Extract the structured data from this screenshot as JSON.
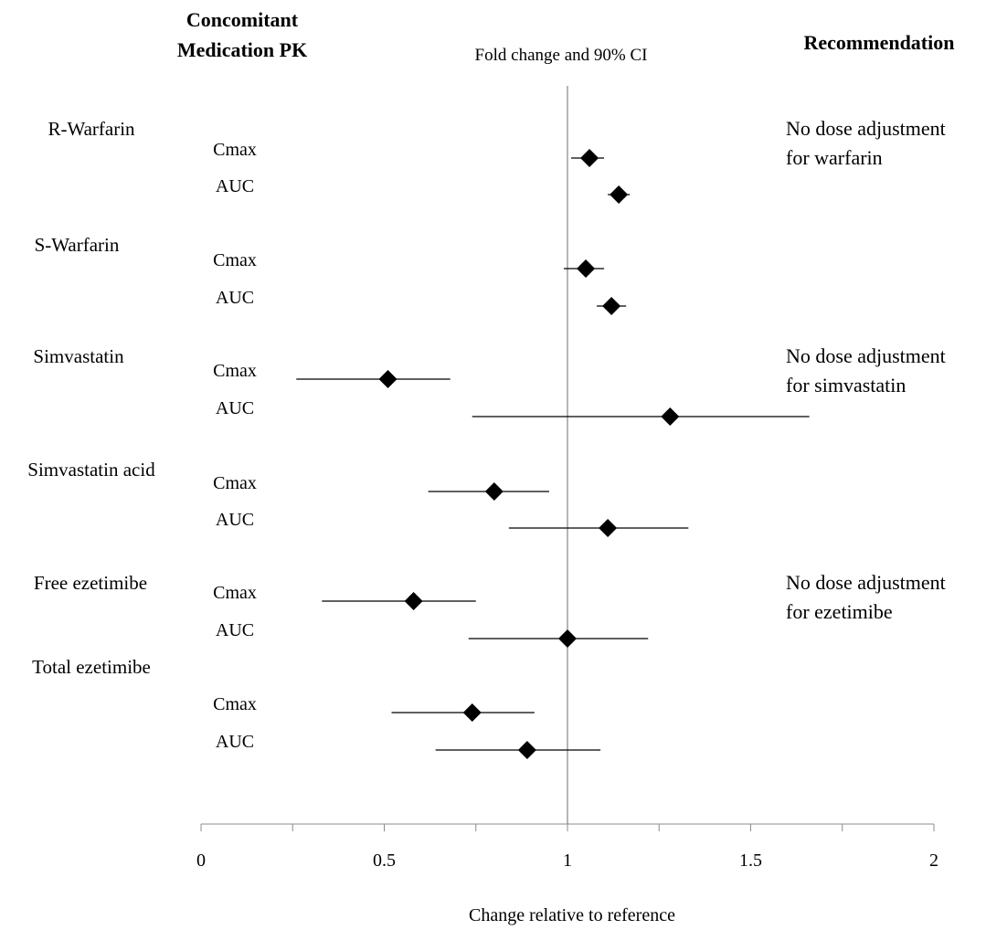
{
  "headers": {
    "left_line1": "Concomitant",
    "left_line2": "Medication PK",
    "center": "Fold change and 90% CI",
    "right": "Recommendation"
  },
  "chart_data": {
    "type": "forest",
    "title": "Fold change and 90% CI",
    "xlabel": "Change relative to reference",
    "xlim": [
      0,
      2
    ],
    "xticks": [
      "0",
      "0.5",
      "1",
      "1.5",
      "2"
    ],
    "reference_line": 1,
    "groups": [
      {
        "drug": "R-Warfarin",
        "rows": [
          {
            "metric": "Cmax",
            "estimate": 1.06,
            "ci_low": 1.01,
            "ci_high": 1.1
          },
          {
            "metric": "AUC",
            "estimate": 1.14,
            "ci_low": 1.11,
            "ci_high": 1.17
          }
        ]
      },
      {
        "drug": "S-Warfarin",
        "rows": [
          {
            "metric": "Cmax",
            "estimate": 1.05,
            "ci_low": 0.99,
            "ci_high": 1.1
          },
          {
            "metric": "AUC",
            "estimate": 1.12,
            "ci_low": 1.08,
            "ci_high": 1.16
          }
        ]
      },
      {
        "drug": "Simvastatin",
        "rows": [
          {
            "metric": "Cmax",
            "estimate": 0.51,
            "ci_low": 0.26,
            "ci_high": 0.68
          },
          {
            "metric": "AUC",
            "estimate": 1.28,
            "ci_low": 0.74,
            "ci_high": 1.66
          }
        ]
      },
      {
        "drug": "Simvastatin acid",
        "rows": [
          {
            "metric": "Cmax",
            "estimate": 0.8,
            "ci_low": 0.62,
            "ci_high": 0.95
          },
          {
            "metric": "AUC",
            "estimate": 1.11,
            "ci_low": 0.84,
            "ci_high": 1.33
          }
        ]
      },
      {
        "drug": "Free ezetimibe",
        "rows": [
          {
            "metric": "Cmax",
            "estimate": 0.58,
            "ci_low": 0.33,
            "ci_high": 0.75
          },
          {
            "metric": "AUC",
            "estimate": 1.0,
            "ci_low": 0.73,
            "ci_high": 1.22
          }
        ]
      },
      {
        "drug": "Total ezetimibe",
        "rows": [
          {
            "metric": "Cmax",
            "estimate": 0.74,
            "ci_low": 0.52,
            "ci_high": 0.91
          },
          {
            "metric": "AUC",
            "estimate": 0.89,
            "ci_low": 0.64,
            "ci_high": 1.09
          }
        ]
      }
    ],
    "recommendations": [
      {
        "line1": "No dose adjustment",
        "line2": "for warfarin"
      },
      {
        "line1": "No dose adjustment",
        "line2": "for simvastatin"
      },
      {
        "line1": "No dose adjustment",
        "line2": "for ezetimibe"
      }
    ]
  }
}
